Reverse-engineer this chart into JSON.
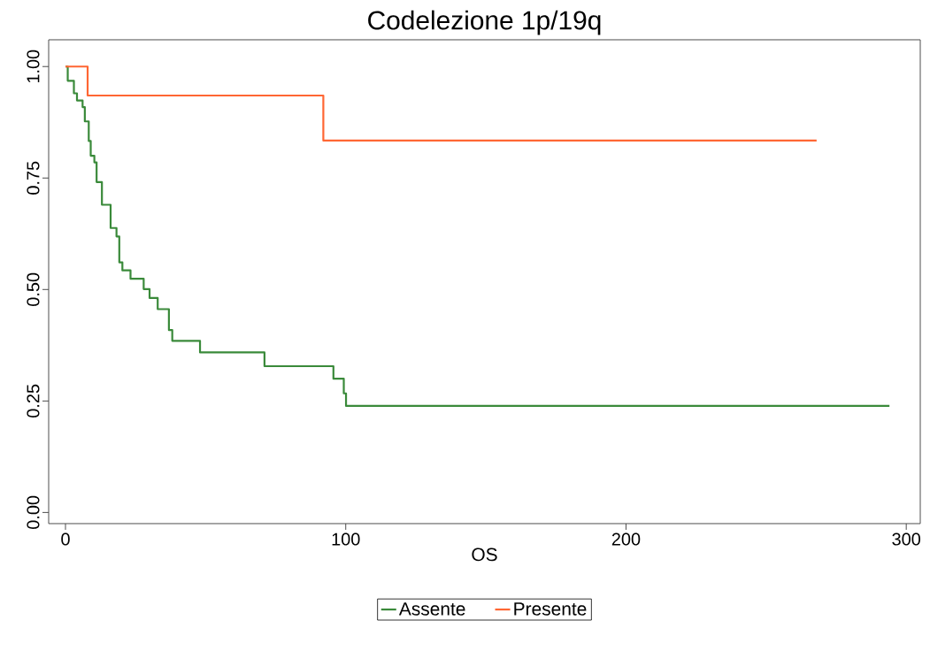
{
  "chart_data": {
    "type": "step",
    "title": "Codelezione 1p/19q",
    "xlabel": "OS",
    "xlim": [
      -6,
      305
    ],
    "ylim": [
      -0.025,
      1.06
    ],
    "xticks": [
      0,
      100,
      200,
      300
    ],
    "yticks": [
      {
        "value": 0,
        "label": "0.00"
      },
      {
        "value": 0.25,
        "label": "0.25"
      },
      {
        "value": 0.5,
        "label": "0.50"
      },
      {
        "value": 0.75,
        "label": "0.75"
      },
      {
        "value": 1,
        "label": "1.00"
      }
    ],
    "grid": false,
    "legend": "bottom",
    "series": [
      {
        "name": "Assente",
        "color": "#3a8a3a",
        "x": [
          0,
          0.8,
          3.0,
          4.1,
          6.1,
          6.9,
          8.3,
          9.0,
          10.3,
          11.1,
          13.0,
          16.1,
          18.2,
          19.2,
          20.3,
          23.2,
          27.9,
          30.0,
          32.9,
          36.9,
          38.1,
          48.0,
          71.0,
          95.6,
          99.3,
          100.1,
          294
        ],
        "values": [
          1.0,
          0.968,
          0.94,
          0.924,
          0.909,
          0.877,
          0.833,
          0.8,
          0.785,
          0.741,
          0.69,
          0.638,
          0.619,
          0.561,
          0.543,
          0.524,
          0.501,
          0.481,
          0.456,
          0.409,
          0.385,
          0.359,
          0.328,
          0.3,
          0.267,
          0.239,
          0.239
        ]
      },
      {
        "name": "Presente",
        "color": "#ff6633",
        "x": [
          0,
          7.9,
          92,
          268
        ],
        "values": [
          1.0,
          0.935,
          0.834,
          0.834
        ]
      }
    ]
  }
}
